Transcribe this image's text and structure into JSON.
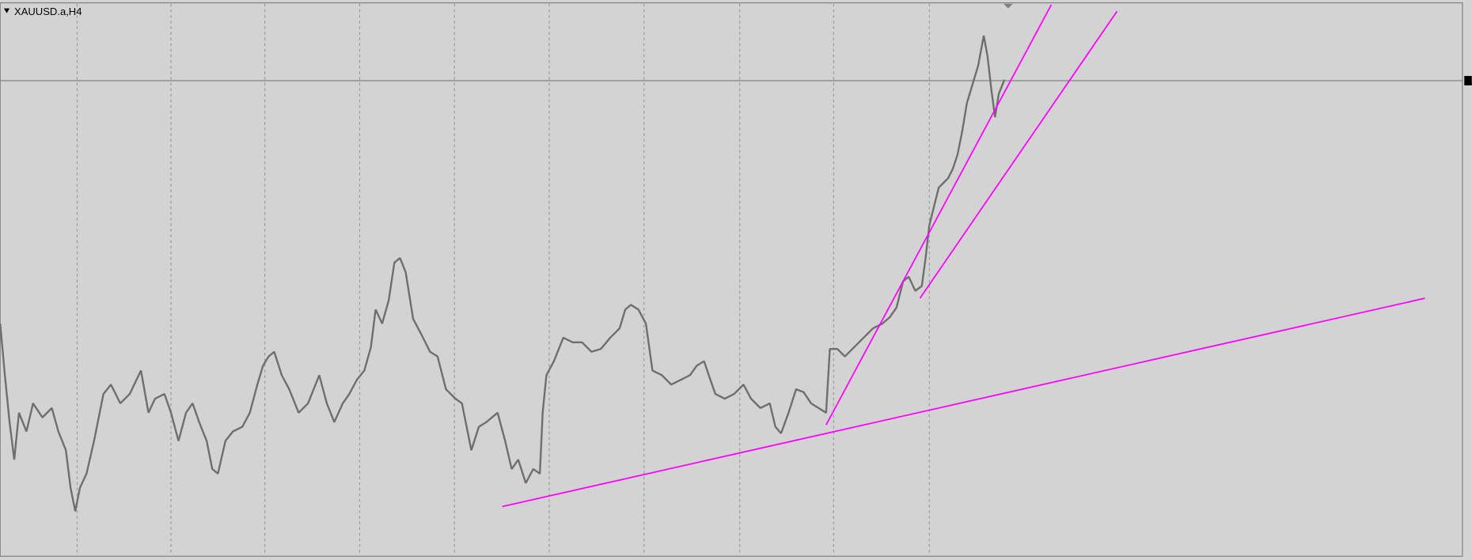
{
  "window": {
    "title": "XAUUSD.a,H4"
  }
}
